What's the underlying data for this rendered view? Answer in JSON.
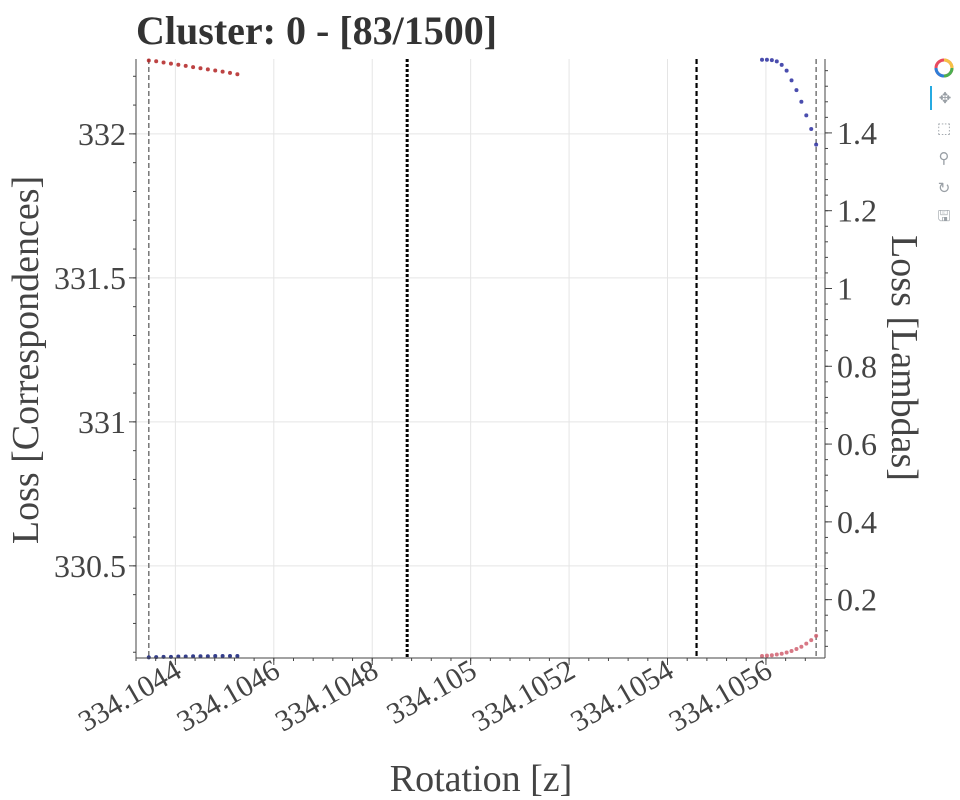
{
  "chart_data": {
    "type": "scatter",
    "title": "Cluster: 0 - [83/1500]",
    "xlabel": "Rotation [z]",
    "ylabel": "Loss [Correspondences]",
    "y2label": "Loss [Lambdas]",
    "xlim": [
      334.10432,
      334.10572
    ],
    "ylim": [
      330.18,
      332.26
    ],
    "y2lim": [
      0.05,
      1.59
    ],
    "xticks": [
      "334.1044",
      "334.1046",
      "334.1048",
      "334.105",
      "334.1052",
      "334.1054",
      "334.1056"
    ],
    "xtick_values": [
      334.1044,
      334.1046,
      334.1048,
      334.105,
      334.1052,
      334.1054,
      334.1056
    ],
    "yticks": [
      "330.5",
      "331",
      "331.5",
      "332"
    ],
    "ytick_values": [
      330.5,
      331,
      331.5,
      332
    ],
    "y2ticks": [
      "0.2",
      "0.4",
      "0.6",
      "0.8",
      "1",
      "1.2",
      "1.4"
    ],
    "y2tick_values": [
      0.2,
      0.4,
      0.6,
      0.8,
      1.0,
      1.2,
      1.4
    ],
    "grid": true,
    "vlines": [
      {
        "x": 334.104346,
        "style": "dashed",
        "color": "#777777",
        "weight": "thin"
      },
      {
        "x": 334.104871,
        "style": "dotted",
        "color": "#000000",
        "weight": "bold"
      },
      {
        "x": 334.105459,
        "style": "dashed",
        "color": "#000000",
        "weight": "medium"
      },
      {
        "x": 334.105702,
        "style": "dashed",
        "color": "#777777",
        "weight": "thin"
      }
    ],
    "series": [
      {
        "axis": "left",
        "color": "#b22222",
        "points": [
          [
            334.104346,
            332.255
          ],
          [
            334.104361,
            332.252
          ],
          [
            334.104376,
            332.248
          ],
          [
            334.104391,
            332.244
          ],
          [
            334.104406,
            332.24
          ],
          [
            334.104421,
            332.236
          ],
          [
            334.104436,
            332.232
          ],
          [
            334.104451,
            332.228
          ],
          [
            334.104466,
            332.224
          ],
          [
            334.104481,
            332.22
          ],
          [
            334.104496,
            332.216
          ],
          [
            334.104511,
            332.212
          ],
          [
            334.104526,
            332.207
          ]
        ]
      },
      {
        "axis": "left",
        "color": "#101c78",
        "points": [
          [
            334.104346,
            330.182
          ],
          [
            334.104361,
            330.183
          ],
          [
            334.104376,
            330.184
          ],
          [
            334.104391,
            330.184
          ],
          [
            334.104406,
            330.185
          ],
          [
            334.104421,
            330.185
          ],
          [
            334.104436,
            330.186
          ],
          [
            334.104451,
            330.186
          ],
          [
            334.104466,
            330.186
          ],
          [
            334.104481,
            330.187
          ],
          [
            334.104496,
            330.187
          ],
          [
            334.104511,
            330.187
          ],
          [
            334.104526,
            330.187
          ]
        ]
      },
      {
        "axis": "right",
        "color": "#2a2ea0",
        "points": [
          [
            334.105592,
            1.588
          ],
          [
            334.105602,
            1.588
          ],
          [
            334.105612,
            1.587
          ],
          [
            334.105622,
            1.584
          ],
          [
            334.105632,
            1.575
          ],
          [
            334.105642,
            1.56
          ],
          [
            334.105652,
            1.535
          ],
          [
            334.105662,
            1.51
          ],
          [
            334.105672,
            1.48
          ],
          [
            334.105682,
            1.445
          ],
          [
            334.105692,
            1.41
          ],
          [
            334.105702,
            1.37
          ]
        ]
      },
      {
        "axis": "right",
        "color": "#d06070",
        "points": [
          [
            334.105592,
            0.055
          ],
          [
            334.105602,
            0.056
          ],
          [
            334.105612,
            0.057
          ],
          [
            334.105622,
            0.059
          ],
          [
            334.105632,
            0.061
          ],
          [
            334.105642,
            0.064
          ],
          [
            334.105652,
            0.068
          ],
          [
            334.105662,
            0.073
          ],
          [
            334.105672,
            0.079
          ],
          [
            334.105682,
            0.087
          ],
          [
            334.105692,
            0.096
          ],
          [
            334.105702,
            0.107
          ]
        ]
      }
    ]
  },
  "toolbar": {
    "tools": [
      {
        "name": "bokeh-logo-icon",
        "glyph": "",
        "interactable": false
      },
      {
        "name": "pan-tool-icon",
        "glyph": "✥",
        "interactable": true,
        "active": true
      },
      {
        "name": "box-zoom-tool-icon",
        "glyph": "⬚",
        "interactable": true
      },
      {
        "name": "wheel-zoom-tool-icon",
        "glyph": "⚲",
        "interactable": true
      },
      {
        "name": "reset-tool-icon",
        "glyph": "↻",
        "interactable": true
      },
      {
        "name": "save-tool-icon",
        "glyph": "🖫",
        "interactable": true
      }
    ]
  }
}
